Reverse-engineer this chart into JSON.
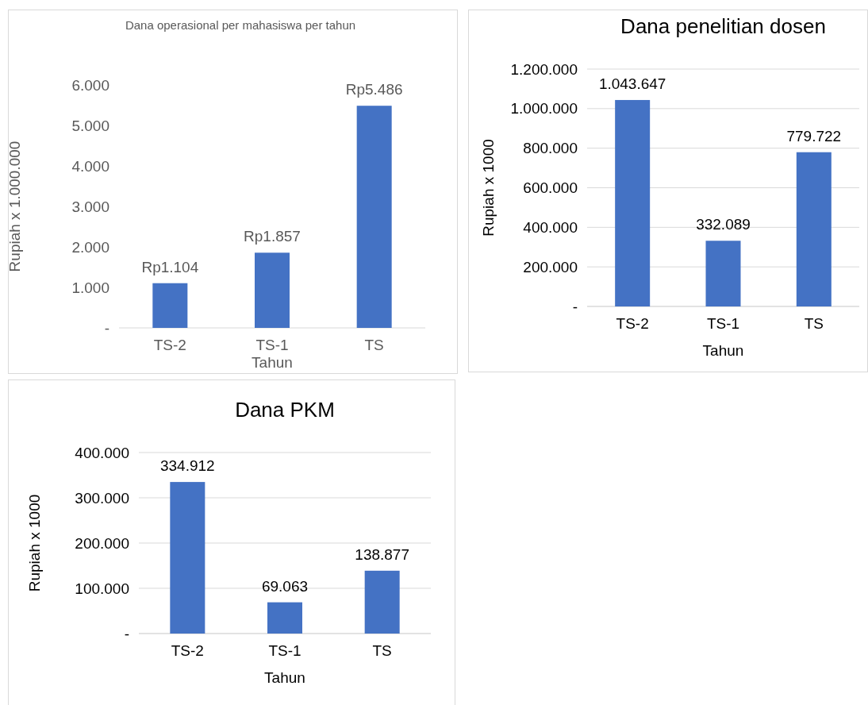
{
  "chart_data": [
    {
      "type": "bar",
      "title": "Dana operasional per mahasiswa per tahun",
      "xlabel": "Tahun",
      "ylabel": "Rupiah x 1.000.000",
      "categories": [
        "TS-2",
        "TS-1",
        "TS"
      ],
      "values": [
        1104,
        1857,
        5486
      ],
      "color": "#4472c4",
      "value_labels": [
        "Rp1.104",
        "Rp1.857",
        "Rp5.486"
      ],
      "ylim": [
        0,
        6000
      ],
      "yticks": [
        {
          "value": 0,
          "label": "-"
        },
        {
          "value": 1000,
          "label": "1.000"
        },
        {
          "value": 2000,
          "label": "2.000"
        },
        {
          "value": 3000,
          "label": "3.000"
        },
        {
          "value": 4000,
          "label": "4.000"
        },
        {
          "value": 5000,
          "label": "5.000"
        },
        {
          "value": 6000,
          "label": "6.000"
        }
      ],
      "grid": false
    },
    {
      "type": "bar",
      "title": "Dana penelitian dosen",
      "xlabel": "Tahun",
      "ylabel": "Rupiah x 1000",
      "categories": [
        "TS-2",
        "TS-1",
        "TS"
      ],
      "values": [
        1043647,
        332089,
        779722
      ],
      "color": "#4472c4",
      "value_labels": [
        "1.043.647",
        "332.089",
        "779.722"
      ],
      "ylim": [
        0,
        1200000
      ],
      "yticks": [
        {
          "value": 0,
          "label": "-"
        },
        {
          "value": 200000,
          "label": "200.000"
        },
        {
          "value": 400000,
          "label": "400.000"
        },
        {
          "value": 600000,
          "label": "600.000"
        },
        {
          "value": 800000,
          "label": "800.000"
        },
        {
          "value": 1000000,
          "label": "1.000.000"
        },
        {
          "value": 1200000,
          "label": "1.200.000"
        }
      ],
      "grid": "y"
    },
    {
      "type": "bar",
      "title": "Dana PKM",
      "xlabel": "Tahun",
      "ylabel": "Rupiah x 1000",
      "categories": [
        "TS-2",
        "TS-1",
        "TS"
      ],
      "values": [
        334912,
        69063,
        138877
      ],
      "color": "#4472c4",
      "value_labels": [
        "334.912",
        "69.063",
        "138.877"
      ],
      "ylim": [
        0,
        400000
      ],
      "yticks": [
        {
          "value": 0,
          "label": "-"
        },
        {
          "value": 100000,
          "label": "100.000"
        },
        {
          "value": 200000,
          "label": "200.000"
        },
        {
          "value": 300000,
          "label": "300.000"
        },
        {
          "value": 400000,
          "label": "400.000"
        }
      ],
      "grid": "y"
    }
  ]
}
